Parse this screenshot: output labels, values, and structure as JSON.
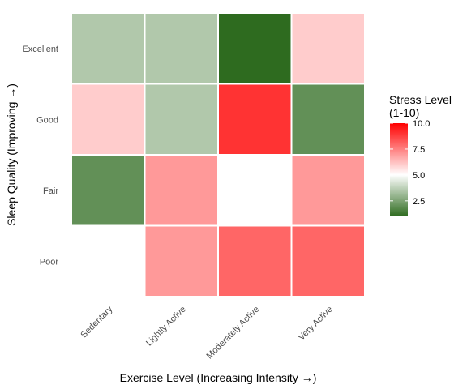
{
  "chart_data": {
    "type": "heatmap",
    "xlabel": "Exercise Level (Increasing Intensity →)",
    "ylabel": "Sleep Quality (Improving →)",
    "x_categories": [
      "Sedentary",
      "Lightly Active",
      "Moderately Active",
      "Very Active"
    ],
    "y_categories": [
      "Poor",
      "Fair",
      "Good",
      "Excellent"
    ],
    "cells": [
      {
        "x": "Sedentary",
        "y": "Excellent",
        "value": 3.5
      },
      {
        "x": "Lightly Active",
        "y": "Excellent",
        "value": 3.5
      },
      {
        "x": "Moderately Active",
        "y": "Excellent",
        "value": 1.0
      },
      {
        "x": "Very Active",
        "y": "Excellent",
        "value": 6.0
      },
      {
        "x": "Sedentary",
        "y": "Good",
        "value": 6.0
      },
      {
        "x": "Lightly Active",
        "y": "Good",
        "value": 3.5
      },
      {
        "x": "Moderately Active",
        "y": "Good",
        "value": 9.0
      },
      {
        "x": "Very Active",
        "y": "Good",
        "value": 2.0
      },
      {
        "x": "Sedentary",
        "y": "Fair",
        "value": 2.0
      },
      {
        "x": "Lightly Active",
        "y": "Fair",
        "value": 7.0
      },
      {
        "x": "Moderately Active",
        "y": "Fair",
        "value": 5.0
      },
      {
        "x": "Very Active",
        "y": "Fair",
        "value": 7.0
      },
      {
        "x": "Lightly Active",
        "y": "Poor",
        "value": 7.0
      },
      {
        "x": "Moderately Active",
        "y": "Poor",
        "value": 8.0
      },
      {
        "x": "Very Active",
        "y": "Poor",
        "value": 8.0
      }
    ],
    "legend": {
      "title_lines": [
        "Stress Level",
        "(1-10)"
      ],
      "ticks": [
        2.5,
        5.0,
        7.5,
        10.0
      ],
      "tick_labels": [
        "2.5",
        "5.0",
        "7.5",
        "10.0"
      ],
      "range": [
        1,
        10
      ],
      "midpoint": 5,
      "placement": "right"
    },
    "colors": {
      "low": "#2e6b1f",
      "mid": "#ffffff",
      "high": "#ff0000",
      "cell_border": "#ffffff"
    },
    "grid": false
  }
}
